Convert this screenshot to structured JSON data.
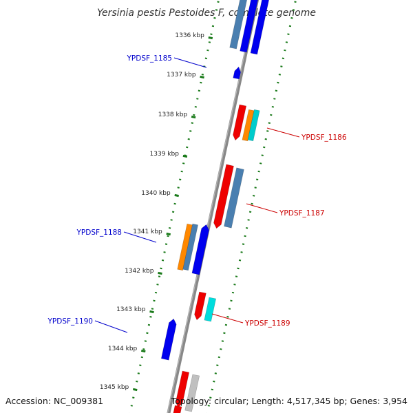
{
  "title": "Yersinia pestis Pestoides F, complete genome",
  "footer": {
    "accession": "Accession: NC_009381",
    "summary": "Topology: circular; Length: 4,517,345 bp; Genes: 3,954"
  },
  "colors": {
    "forward_label": "#cc0000",
    "reverse_label": "#0000cc",
    "backbone": "#888888",
    "ruler_dots": "#1a7a1a"
  },
  "ruler_ticks": [
    "1336 kbp",
    "1337 kbp",
    "1338 kbp",
    "1339 kbp",
    "1340 kbp",
    "1341 kbp",
    "1342 kbp",
    "1343 kbp",
    "1344 kbp",
    "1345 kbp"
  ],
  "gene_labels": {
    "forward": [
      "YPDSF_1186",
      "YPDSF_1187",
      "YPDSF_1189"
    ],
    "reverse": [
      "YPDSF_1185",
      "YPDSF_1188",
      "YPDSF_1190"
    ]
  }
}
